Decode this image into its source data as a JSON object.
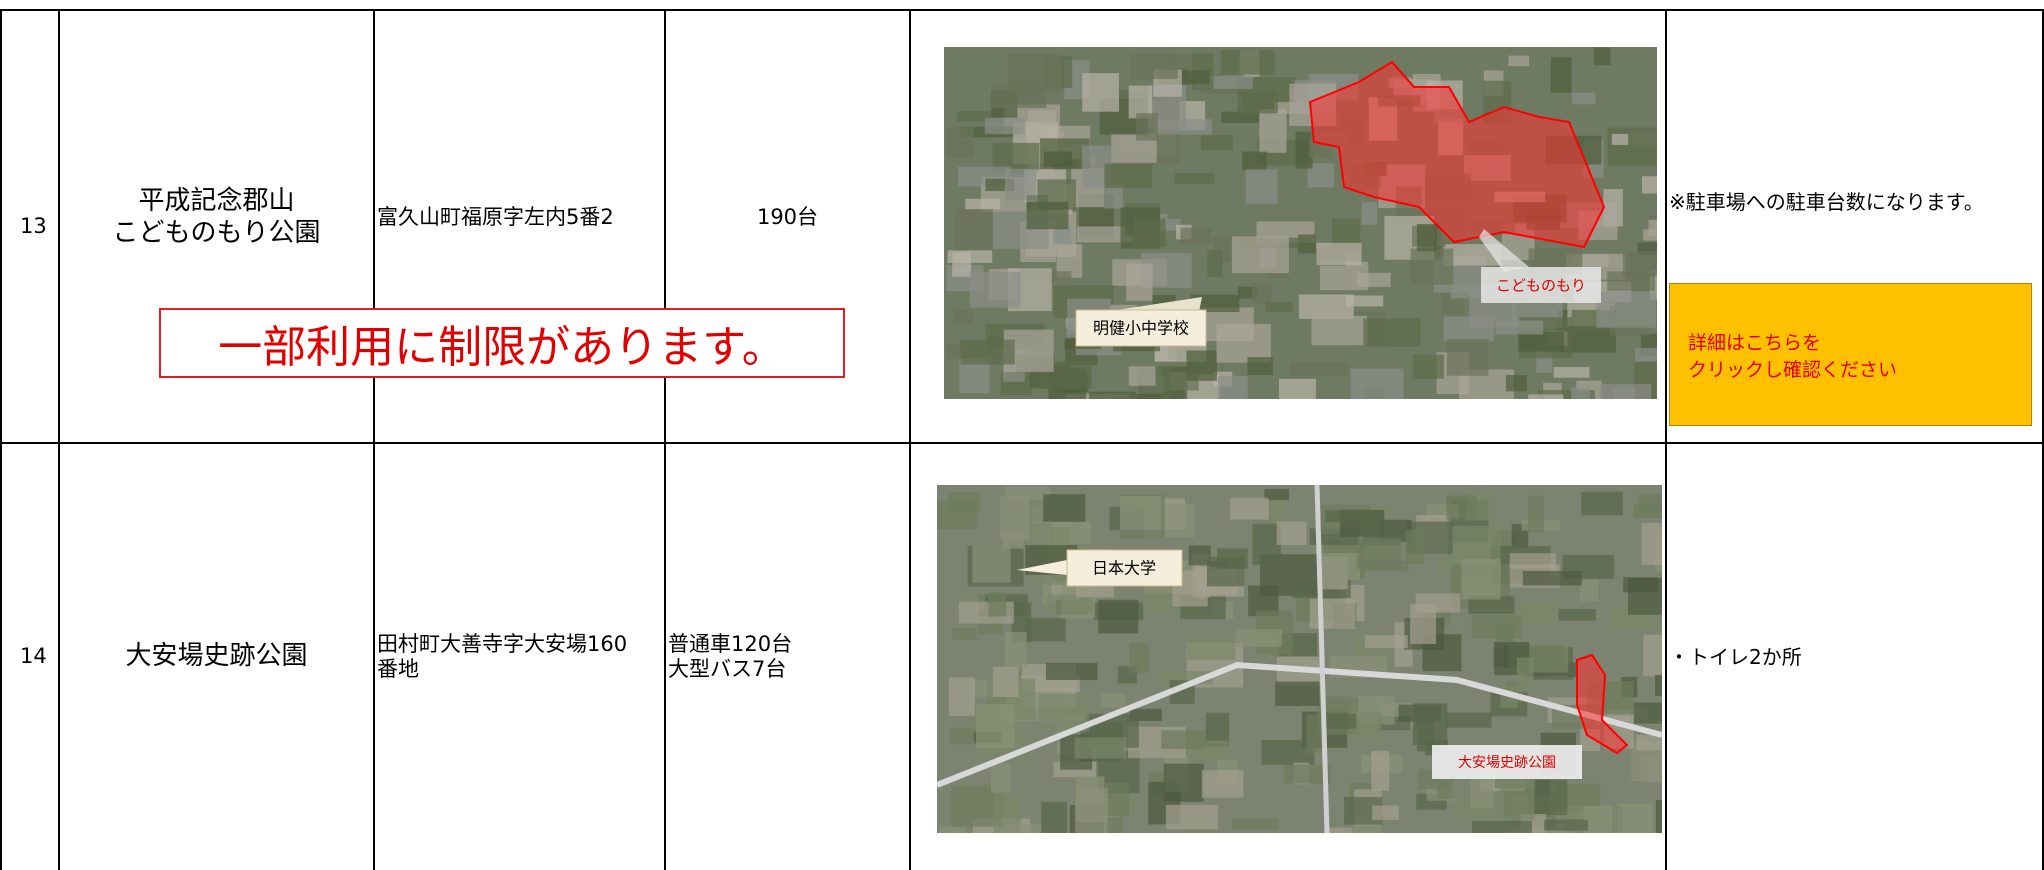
{
  "table": {
    "rows": [
      {
        "no": "13",
        "name": [
          "平成記念郡山",
          "こどものもり公園"
        ],
        "address": "富久山町福原字左内5番2",
        "parking": [
          "190台"
        ],
        "map_labels": [
          "明健小中学校",
          "こどものもり"
        ],
        "notes": "※駐車場への駐車台数になります。",
        "button": [
          "詳細はこちらを",
          "クリックし確認ください"
        ]
      },
      {
        "no": "14",
        "name": [
          "大安場史跡公園"
        ],
        "address": "田村町大善寺字大安場160番地",
        "parking": [
          "普通車120台",
          "大型バス7台"
        ],
        "map_labels": [
          "日本大学",
          "大安場史跡公園"
        ],
        "notes": "・トイレ2か所"
      }
    ]
  },
  "banner": "一部利用に制限があります。"
}
